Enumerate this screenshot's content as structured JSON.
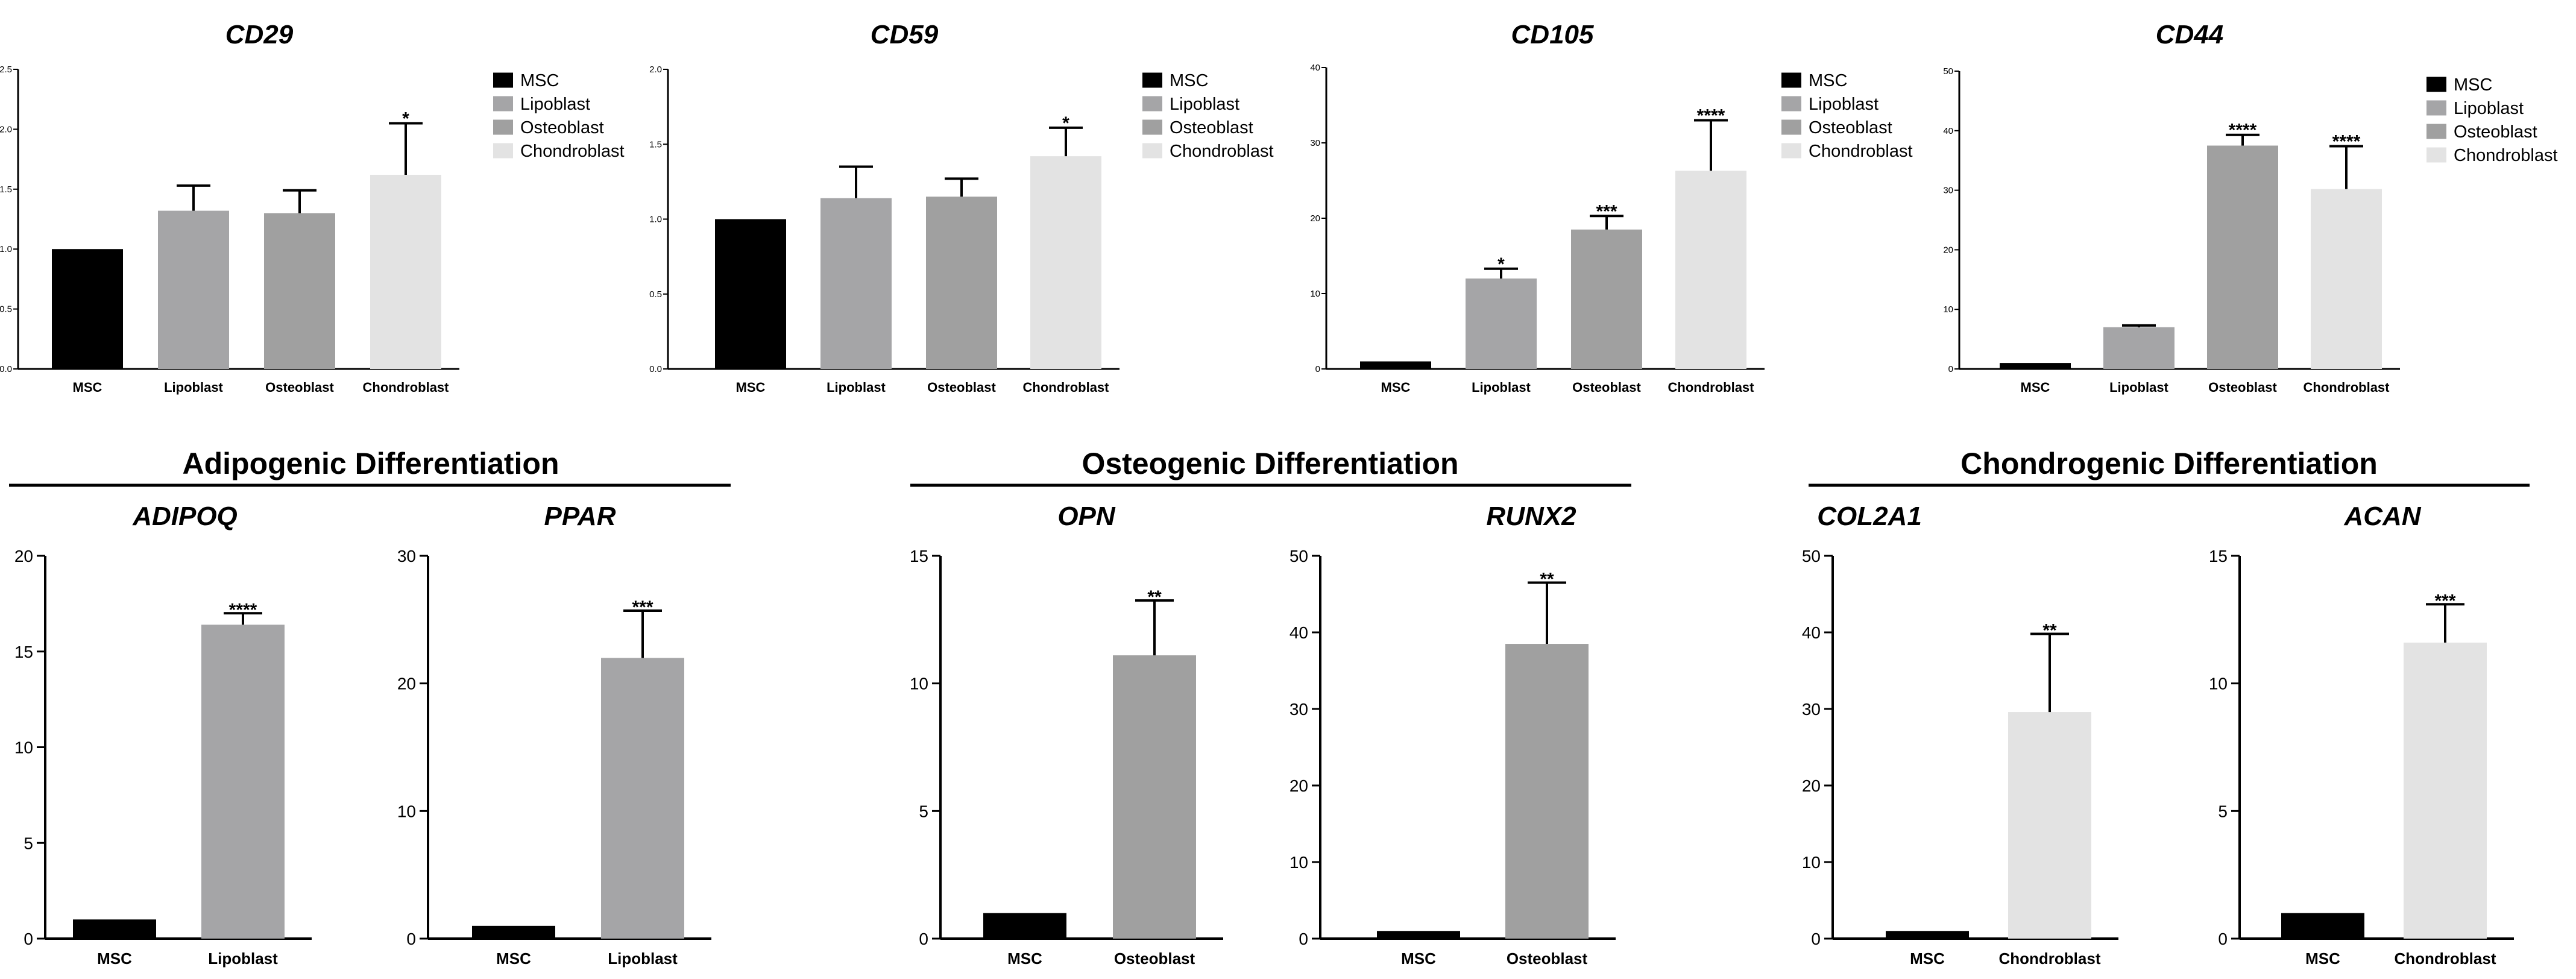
{
  "section_titles": [
    "Adipogenic Differentiation",
    "Osteogenic Differentiation",
    "Chondrogenic Differentiation"
  ],
  "colors": {
    "MSC": "#000000",
    "Lipoblast": "#a5a5a7",
    "Osteoblast": "#a0a0a0",
    "Chondroblast": "#e3e3e3"
  },
  "chart_data": [
    {
      "type": "bar",
      "title": "CD29",
      "categories": [
        "MSC",
        "Lipoblast",
        "Osteoblast",
        "Chondroblast"
      ],
      "values": [
        1.0,
        1.32,
        1.3,
        1.62
      ],
      "errors": [
        0,
        0.21,
        0.19,
        0.43
      ],
      "significance": [
        "",
        "",
        "",
        "*"
      ],
      "yticks": [
        "0.0",
        "0.5",
        "1.0",
        "1.5",
        "2.0",
        "2.5"
      ],
      "ylim": [
        0,
        2.5
      ],
      "legend": [
        "MSC",
        "Lipoblast",
        "Osteoblast",
        "Chondroblast"
      ]
    },
    {
      "type": "bar",
      "title": "CD59",
      "categories": [
        "MSC",
        "Lipoblast",
        "Osteoblast",
        "Chondroblast"
      ],
      "values": [
        1.0,
        1.14,
        1.15,
        1.42
      ],
      "errors": [
        0,
        0.21,
        0.12,
        0.19
      ],
      "significance": [
        "",
        "",
        "",
        "*"
      ],
      "yticks": [
        "0.0",
        "0.5",
        "1.0",
        "1.5",
        "2.0"
      ],
      "ylim": [
        0,
        2.0
      ],
      "legend": [
        "MSC",
        "Lipoblast",
        "Osteoblast",
        "Chondroblast"
      ]
    },
    {
      "type": "bar",
      "title": "CD105",
      "categories": [
        "MSC",
        "Lipoblast",
        "Osteoblast",
        "Chondroblast"
      ],
      "values": [
        1.0,
        12.0,
        18.5,
        26.3
      ],
      "errors": [
        0,
        1.3,
        1.8,
        6.7
      ],
      "significance": [
        "",
        "*",
        "***",
        "****"
      ],
      "yticks": [
        "0",
        "10",
        "20",
        "30",
        "40"
      ],
      "ylim": [
        0,
        40
      ],
      "legend": [
        "MSC",
        "Lipoblast",
        "Osteoblast",
        "Chondroblast"
      ]
    },
    {
      "type": "bar",
      "title": "CD44",
      "categories": [
        "MSC",
        "Lipoblast",
        "Osteoblast",
        "Chondroblast"
      ],
      "values": [
        1.0,
        7.0,
        37.5,
        30.2
      ],
      "errors": [
        0,
        0.3,
        1.8,
        7.2
      ],
      "significance": [
        "",
        "",
        "****",
        "****"
      ],
      "yticks": [
        "0",
        "10",
        "20",
        "30",
        "40",
        "50"
      ],
      "ylim": [
        0,
        50
      ],
      "legend": [
        "MSC",
        "Lipoblast",
        "Osteoblast",
        "Chondroblast"
      ]
    },
    {
      "type": "bar",
      "title": "ADIPOQ",
      "categories": [
        "MSC",
        "Lipoblast"
      ],
      "values": [
        1.0,
        16.4
      ],
      "errors": [
        0,
        0.6
      ],
      "significance": [
        "",
        "****"
      ],
      "yticks": [
        "0",
        "5",
        "10",
        "15",
        "20"
      ],
      "ylim": [
        0,
        20
      ]
    },
    {
      "type": "bar",
      "title": "PPAR",
      "categories": [
        "MSC",
        "Lipoblast"
      ],
      "values": [
        1.0,
        22.0
      ],
      "errors": [
        0,
        3.7
      ],
      "significance": [
        "",
        "***"
      ],
      "yticks": [
        "0",
        "10",
        "20",
        "30"
      ],
      "ylim": [
        0,
        30
      ]
    },
    {
      "type": "bar",
      "title": "OPN",
      "categories": [
        "MSC",
        "Osteoblast"
      ],
      "values": [
        1.0,
        11.1
      ],
      "errors": [
        0,
        2.15
      ],
      "significance": [
        "",
        "**"
      ],
      "yticks": [
        "0",
        "5",
        "10",
        "15"
      ],
      "ylim": [
        0,
        15
      ]
    },
    {
      "type": "bar",
      "title": "RUNX2",
      "categories": [
        "MSC",
        "Osteoblast"
      ],
      "values": [
        1.0,
        38.5
      ],
      "errors": [
        0,
        8.0
      ],
      "significance": [
        "",
        "**"
      ],
      "yticks": [
        "0",
        "10",
        "20",
        "30",
        "40",
        "50"
      ],
      "ylim": [
        0,
        50
      ]
    },
    {
      "type": "bar",
      "title": "COL2A1",
      "categories": [
        "MSC",
        "Chondroblast"
      ],
      "values": [
        1.0,
        29.6
      ],
      "errors": [
        0,
        10.2
      ],
      "significance": [
        "",
        "**"
      ],
      "yticks": [
        "0",
        "10",
        "20",
        "30",
        "40",
        "50"
      ],
      "ylim": [
        0,
        50
      ]
    },
    {
      "type": "bar",
      "title": "ACAN",
      "categories": [
        "MSC",
        "Chondroblast"
      ],
      "values": [
        1.0,
        11.6
      ],
      "errors": [
        0,
        1.5
      ],
      "significance": [
        "",
        "***"
      ],
      "yticks": [
        "0",
        "5",
        "10",
        "15"
      ],
      "ylim": [
        0,
        15
      ]
    }
  ]
}
